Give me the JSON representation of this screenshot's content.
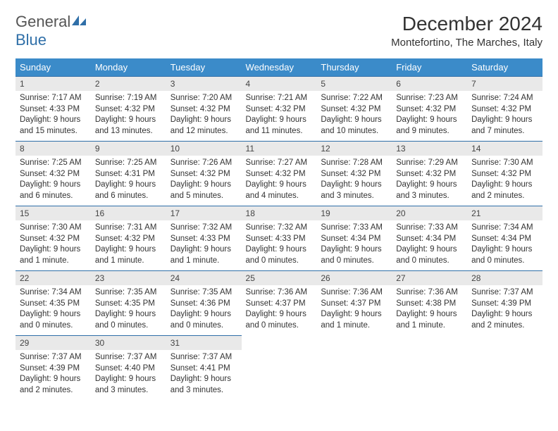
{
  "brand": {
    "name_part1": "General",
    "name_part2": "Blue"
  },
  "title": "December 2024",
  "location": "Montefortino, The Marches, Italy",
  "colors": {
    "header_bg": "#3b8bc9",
    "header_text": "#ffffff",
    "daynum_bg": "#e9e9e9",
    "border": "#2f6fa8",
    "text": "#333333",
    "brand_gray": "#555555",
    "brand_blue": "#2f6fa8"
  },
  "weekdays": [
    "Sunday",
    "Monday",
    "Tuesday",
    "Wednesday",
    "Thursday",
    "Friday",
    "Saturday"
  ],
  "days": [
    {
      "n": 1,
      "sunrise": "7:17 AM",
      "sunset": "4:33 PM",
      "daylight": "9 hours and 15 minutes."
    },
    {
      "n": 2,
      "sunrise": "7:19 AM",
      "sunset": "4:32 PM",
      "daylight": "9 hours and 13 minutes."
    },
    {
      "n": 3,
      "sunrise": "7:20 AM",
      "sunset": "4:32 PM",
      "daylight": "9 hours and 12 minutes."
    },
    {
      "n": 4,
      "sunrise": "7:21 AM",
      "sunset": "4:32 PM",
      "daylight": "9 hours and 11 minutes."
    },
    {
      "n": 5,
      "sunrise": "7:22 AM",
      "sunset": "4:32 PM",
      "daylight": "9 hours and 10 minutes."
    },
    {
      "n": 6,
      "sunrise": "7:23 AM",
      "sunset": "4:32 PM",
      "daylight": "9 hours and 9 minutes."
    },
    {
      "n": 7,
      "sunrise": "7:24 AM",
      "sunset": "4:32 PM",
      "daylight": "9 hours and 7 minutes."
    },
    {
      "n": 8,
      "sunrise": "7:25 AM",
      "sunset": "4:32 PM",
      "daylight": "9 hours and 6 minutes."
    },
    {
      "n": 9,
      "sunrise": "7:25 AM",
      "sunset": "4:31 PM",
      "daylight": "9 hours and 6 minutes."
    },
    {
      "n": 10,
      "sunrise": "7:26 AM",
      "sunset": "4:32 PM",
      "daylight": "9 hours and 5 minutes."
    },
    {
      "n": 11,
      "sunrise": "7:27 AM",
      "sunset": "4:32 PM",
      "daylight": "9 hours and 4 minutes."
    },
    {
      "n": 12,
      "sunrise": "7:28 AM",
      "sunset": "4:32 PM",
      "daylight": "9 hours and 3 minutes."
    },
    {
      "n": 13,
      "sunrise": "7:29 AM",
      "sunset": "4:32 PM",
      "daylight": "9 hours and 3 minutes."
    },
    {
      "n": 14,
      "sunrise": "7:30 AM",
      "sunset": "4:32 PM",
      "daylight": "9 hours and 2 minutes."
    },
    {
      "n": 15,
      "sunrise": "7:30 AM",
      "sunset": "4:32 PM",
      "daylight": "9 hours and 1 minute."
    },
    {
      "n": 16,
      "sunrise": "7:31 AM",
      "sunset": "4:32 PM",
      "daylight": "9 hours and 1 minute."
    },
    {
      "n": 17,
      "sunrise": "7:32 AM",
      "sunset": "4:33 PM",
      "daylight": "9 hours and 1 minute."
    },
    {
      "n": 18,
      "sunrise": "7:32 AM",
      "sunset": "4:33 PM",
      "daylight": "9 hours and 0 minutes."
    },
    {
      "n": 19,
      "sunrise": "7:33 AM",
      "sunset": "4:34 PM",
      "daylight": "9 hours and 0 minutes."
    },
    {
      "n": 20,
      "sunrise": "7:33 AM",
      "sunset": "4:34 PM",
      "daylight": "9 hours and 0 minutes."
    },
    {
      "n": 21,
      "sunrise": "7:34 AM",
      "sunset": "4:34 PM",
      "daylight": "9 hours and 0 minutes."
    },
    {
      "n": 22,
      "sunrise": "7:34 AM",
      "sunset": "4:35 PM",
      "daylight": "9 hours and 0 minutes."
    },
    {
      "n": 23,
      "sunrise": "7:35 AM",
      "sunset": "4:35 PM",
      "daylight": "9 hours and 0 minutes."
    },
    {
      "n": 24,
      "sunrise": "7:35 AM",
      "sunset": "4:36 PM",
      "daylight": "9 hours and 0 minutes."
    },
    {
      "n": 25,
      "sunrise": "7:36 AM",
      "sunset": "4:37 PM",
      "daylight": "9 hours and 0 minutes."
    },
    {
      "n": 26,
      "sunrise": "7:36 AM",
      "sunset": "4:37 PM",
      "daylight": "9 hours and 1 minute."
    },
    {
      "n": 27,
      "sunrise": "7:36 AM",
      "sunset": "4:38 PM",
      "daylight": "9 hours and 1 minute."
    },
    {
      "n": 28,
      "sunrise": "7:37 AM",
      "sunset": "4:39 PM",
      "daylight": "9 hours and 2 minutes."
    },
    {
      "n": 29,
      "sunrise": "7:37 AM",
      "sunset": "4:39 PM",
      "daylight": "9 hours and 2 minutes."
    },
    {
      "n": 30,
      "sunrise": "7:37 AM",
      "sunset": "4:40 PM",
      "daylight": "9 hours and 3 minutes."
    },
    {
      "n": 31,
      "sunrise": "7:37 AM",
      "sunset": "4:41 PM",
      "daylight": "9 hours and 3 minutes."
    }
  ],
  "labels": {
    "sunrise": "Sunrise:",
    "sunset": "Sunset:",
    "daylight": "Daylight:"
  },
  "grid": {
    "start_offset": 0,
    "total_cells": 35
  }
}
